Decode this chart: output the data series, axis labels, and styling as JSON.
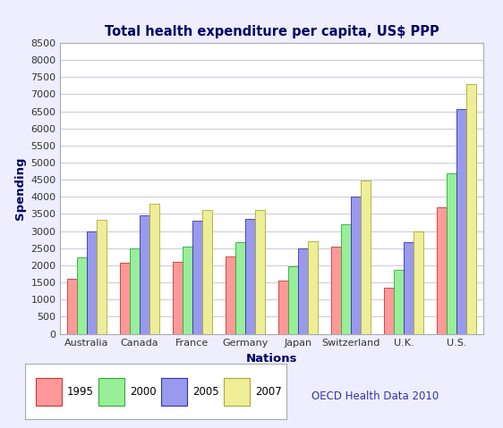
{
  "title": "Total health expenditure per capita, US$ PPP",
  "xlabel": "Nations",
  "ylabel": "Spending",
  "categories": [
    "Australia",
    "Canada",
    "France",
    "Germany",
    "Japan",
    "Switzerland",
    "U.K.",
    "U.S."
  ],
  "series": {
    "1995": [
      1600,
      2090,
      2100,
      2270,
      1560,
      2560,
      1360,
      3700
    ],
    "2000": [
      2230,
      2500,
      2550,
      2670,
      1970,
      3200,
      1860,
      4700
    ],
    "2005": [
      3000,
      3460,
      3310,
      3350,
      2500,
      4010,
      2670,
      6560
    ],
    "2007": [
      3340,
      3790,
      3620,
      3620,
      2700,
      4470,
      2980,
      7300
    ]
  },
  "colors": {
    "1995": "#FF9999",
    "2000": "#99EE99",
    "2005": "#9999EE",
    "2007": "#EEEE99"
  },
  "bar_edge_colors": {
    "1995": "#CC3333",
    "2000": "#33AA33",
    "2005": "#3333AA",
    "2007": "#AAAA33"
  },
  "ylim": [
    0,
    8500
  ],
  "yticks": [
    0,
    500,
    1000,
    1500,
    2000,
    2500,
    3000,
    3500,
    4000,
    4500,
    5000,
    5500,
    6000,
    6500,
    7000,
    7500,
    8000,
    8500
  ],
  "legend_label": "OECD Health Data 2010",
  "background_color": "#EEEEFF",
  "plot_bg_color": "#FFFFFF",
  "grid_color": "#CCCCDD",
  "title_color": "#000066",
  "axis_label_color": "#000066",
  "tick_label_color": "#333333",
  "oecd_text_color": "#3333AA"
}
